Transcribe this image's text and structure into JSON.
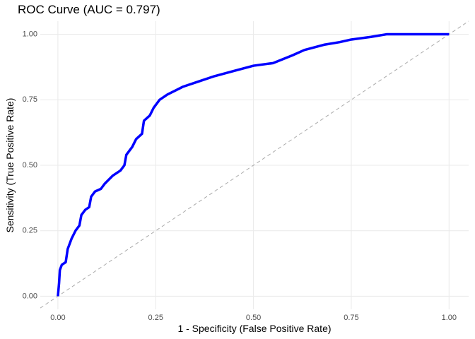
{
  "chart_data": {
    "type": "line",
    "title": "ROC Curve (AUC = 0.797)",
    "x_label": "1 - Specificity (False Positive Rate)",
    "y_label": "Sensitivity (True Positive Rate)",
    "x": [
      0,
      0.003,
      0.005,
      0.01,
      0.02,
      0.025,
      0.035,
      0.045,
      0.055,
      0.06,
      0.07,
      0.08,
      0.085,
      0.095,
      0.11,
      0.12,
      0.14,
      0.16,
      0.17,
      0.175,
      0.19,
      0.2,
      0.215,
      0.22,
      0.235,
      0.245,
      0.26,
      0.28,
      0.32,
      0.36,
      0.4,
      0.45,
      0.5,
      0.55,
      0.6,
      0.63,
      0.68,
      0.72,
      0.75,
      0.8,
      0.84,
      1
    ],
    "series": [
      {
        "color": "#0000ff",
        "values": [
          0,
          0.05,
          0.1,
          0.12,
          0.13,
          0.18,
          0.22,
          0.25,
          0.27,
          0.31,
          0.33,
          0.34,
          0.38,
          0.4,
          0.41,
          0.43,
          0.46,
          0.48,
          0.5,
          0.54,
          0.57,
          0.6,
          0.62,
          0.67,
          0.69,
          0.72,
          0.75,
          0.77,
          0.8,
          0.82,
          0.84,
          0.86,
          0.88,
          0.89,
          0.92,
          0.94,
          0.96,
          0.97,
          0.98,
          0.99,
          1,
          1
        ]
      }
    ],
    "xlim": [
      -0.045,
      1.05
    ],
    "ylim": [
      -0.05,
      1.05
    ],
    "xticks": [
      {
        "value": 0,
        "label": "0.00"
      },
      {
        "value": 0.25,
        "label": "0.25"
      },
      {
        "value": 0.5,
        "label": "0.50"
      },
      {
        "value": 0.75,
        "label": "0.75"
      },
      {
        "value": 1,
        "label": "1.00"
      }
    ],
    "yticks": [
      {
        "value": 0,
        "label": "0.00"
      },
      {
        "value": 0.25,
        "label": "0.25"
      },
      {
        "value": 0.5,
        "label": "0.50"
      },
      {
        "value": 0.75,
        "label": "0.75"
      },
      {
        "value": 1,
        "label": "1.00"
      }
    ],
    "grid": true,
    "diagonal_reference": true,
    "reference_color": "#aaaaaa"
  }
}
